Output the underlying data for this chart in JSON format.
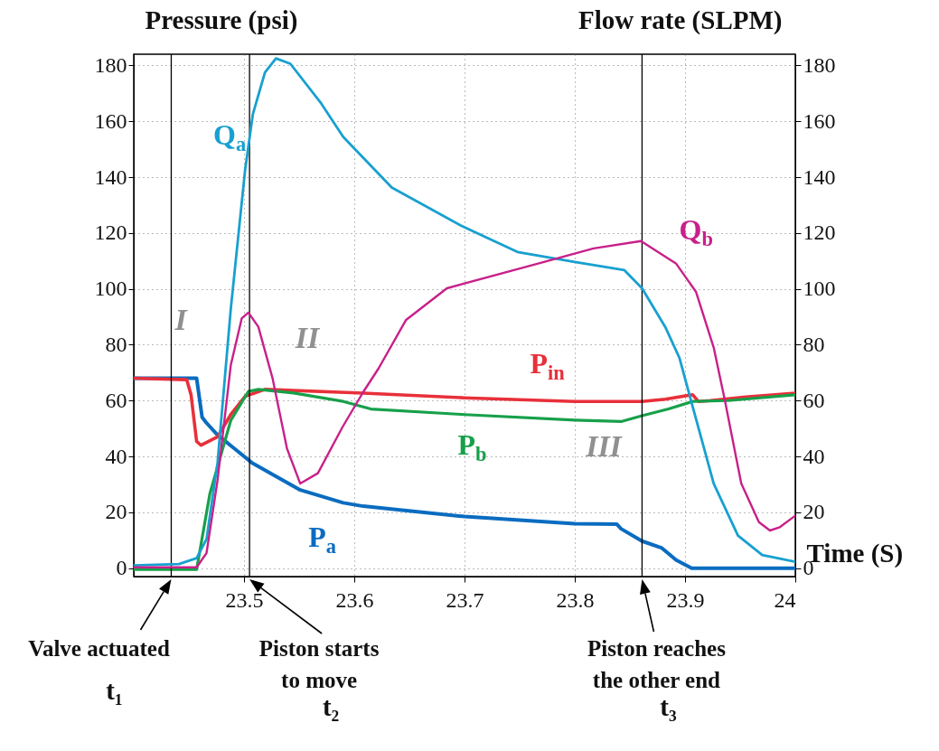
{
  "chart_data": {
    "type": "line",
    "xlabel": "Time (S)",
    "ylabel": "Pressure (psi)",
    "y2label": "Flow rate (SLPM)",
    "xlim": [
      23.4,
      24
    ],
    "xticks": [
      23.5,
      23.6,
      23.7,
      23.8,
      23.9,
      24
    ],
    "ylim": [
      -3,
      184
    ],
    "yticks": [
      0,
      20,
      40,
      60,
      80,
      100,
      120,
      140,
      160,
      180
    ],
    "y2lim": [
      -3,
      184
    ],
    "y2ticks": [
      0,
      20,
      40,
      60,
      80,
      100,
      120,
      140,
      160,
      180
    ],
    "grid": true,
    "series": [
      {
        "name": "P$_{a}$",
        "color": "#0a6cc0",
        "x": [
          23.4,
          23.44,
          23.457,
          23.462,
          23.466,
          23.476,
          23.507,
          23.551,
          23.59,
          23.608,
          23.7,
          23.8,
          23.838,
          23.842,
          23.861,
          23.879,
          23.892,
          23.906,
          23.95,
          24.0
        ],
        "values": [
          68,
          68,
          68,
          54,
          52,
          47.7,
          37.8,
          28,
          23.4,
          22.2,
          18.5,
          15.9,
          15.8,
          14.1,
          9.7,
          7.2,
          2.9,
          0,
          0,
          0
        ]
      },
      {
        "name": "P$_{in}$",
        "color": "#e8303a",
        "x": [
          23.4,
          23.448,
          23.452,
          23.457,
          23.461,
          23.476,
          23.488,
          23.501,
          23.519,
          23.608,
          23.7,
          23.8,
          23.861,
          23.882,
          23.907,
          23.912,
          23.923,
          23.955,
          24.0
        ],
        "values": [
          68,
          67.5,
          62,
          45.4,
          44,
          47,
          55,
          61.5,
          64,
          62.7,
          61,
          59.7,
          59.7,
          60.5,
          62.1,
          59.7,
          60,
          61.3,
          62.7
        ]
      },
      {
        "name": "P$_{b}$",
        "color": "#17a04a",
        "x": [
          23.4,
          23.457,
          23.469,
          23.488,
          23.504,
          23.513,
          23.545,
          23.59,
          23.615,
          23.7,
          23.8,
          23.842,
          23.861,
          23.885,
          23.907,
          23.939,
          24.0
        ],
        "values": [
          -0.5,
          -0.5,
          26.6,
          52.9,
          63.3,
          64,
          62.7,
          59.7,
          57,
          55,
          53,
          52.5,
          54.6,
          57,
          59.7,
          60,
          62.1
        ]
      },
      {
        "name": "Q$_{a}$",
        "color": "#18a0d0",
        "axis": "y2",
        "x": [
          23.4,
          23.441,
          23.457,
          23.466,
          23.476,
          23.488,
          23.501,
          23.508,
          23.519,
          23.529,
          23.542,
          23.57,
          23.59,
          23.634,
          23.697,
          23.748,
          23.8,
          23.845,
          23.861,
          23.882,
          23.895,
          23.907,
          23.926,
          23.948,
          23.97,
          24.0
        ],
        "values": [
          1,
          1.5,
          3.6,
          10.4,
          37.8,
          92.8,
          142.6,
          162.5,
          177.5,
          182.5,
          180.6,
          166.4,
          154.4,
          136.3,
          122.6,
          113.2,
          109.6,
          106.7,
          100.2,
          86.4,
          75.2,
          57.7,
          30.3,
          11.7,
          4.7,
          2.3
        ]
      },
      {
        "name": "Q$_{b}$",
        "color": "#c8208a",
        "axis": "y2",
        "x": [
          23.4,
          23.457,
          23.466,
          23.476,
          23.488,
          23.498,
          23.504,
          23.513,
          23.526,
          23.539,
          23.551,
          23.567,
          23.589,
          23.608,
          23.622,
          23.647,
          23.684,
          23.766,
          23.817,
          23.86,
          23.892,
          23.91,
          23.926,
          23.936,
          23.951,
          23.967,
          23.977,
          23.986,
          24.0
        ],
        "values": [
          0.3,
          0.3,
          5.4,
          31.5,
          72.7,
          89.5,
          91.5,
          86.4,
          67.8,
          42.8,
          30.3,
          34,
          50.3,
          63,
          71.5,
          88.9,
          100.2,
          109,
          114.5,
          117.1,
          109,
          98.9,
          79,
          60.3,
          30.3,
          16.5,
          13.5,
          14.7,
          18.8
        ]
      }
    ],
    "ref_lines": [
      {
        "axis": "x",
        "value": 23.434
      },
      {
        "axis": "x",
        "value": 23.505
      },
      {
        "axis": "x",
        "value": 23.861
      }
    ],
    "annotations": [
      "I",
      "II",
      "III",
      "Valve actuated\nt₁",
      "Piston starts\nto move\nt₂",
      "Piston reaches\nthe other end\nt₃"
    ]
  }
}
